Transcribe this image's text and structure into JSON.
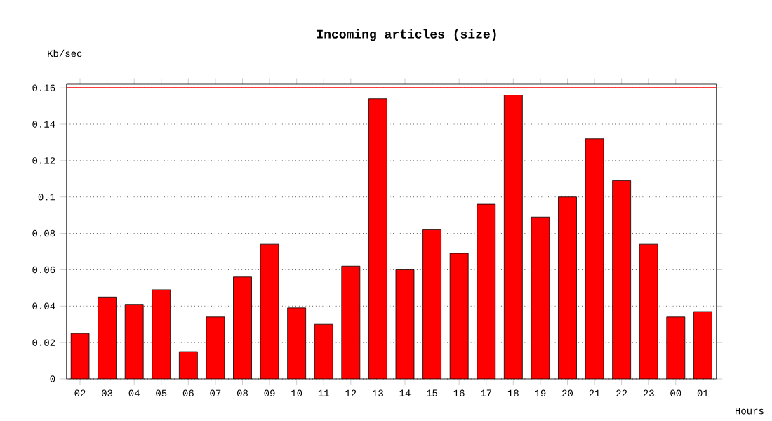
{
  "chart_data": {
    "type": "bar",
    "title": "Incoming articles (size)",
    "ylabel": "Kb/sec",
    "xlabel": "Hours",
    "categories": [
      "02",
      "03",
      "04",
      "05",
      "06",
      "07",
      "08",
      "09",
      "10",
      "11",
      "12",
      "13",
      "14",
      "15",
      "16",
      "17",
      "18",
      "19",
      "20",
      "21",
      "22",
      "23",
      "00",
      "01"
    ],
    "values": [
      0.025,
      0.045,
      0.041,
      0.049,
      0.015,
      0.034,
      0.056,
      0.074,
      0.039,
      0.03,
      0.062,
      0.154,
      0.06,
      0.082,
      0.069,
      0.096,
      0.156,
      0.089,
      0.1,
      0.132,
      0.109,
      0.074,
      0.034,
      0.037
    ],
    "color": "#ff0000",
    "ylim": [
      0,
      0.162
    ],
    "yticks": [
      0,
      0.02,
      0.04,
      0.06,
      0.08,
      0.1,
      0.12,
      0.14,
      0.16
    ],
    "grid": "y",
    "line_style": "dotted",
    "ref_lines": [
      {
        "axis": "y",
        "value": 0.16,
        "color": "#ff0000"
      }
    ]
  }
}
